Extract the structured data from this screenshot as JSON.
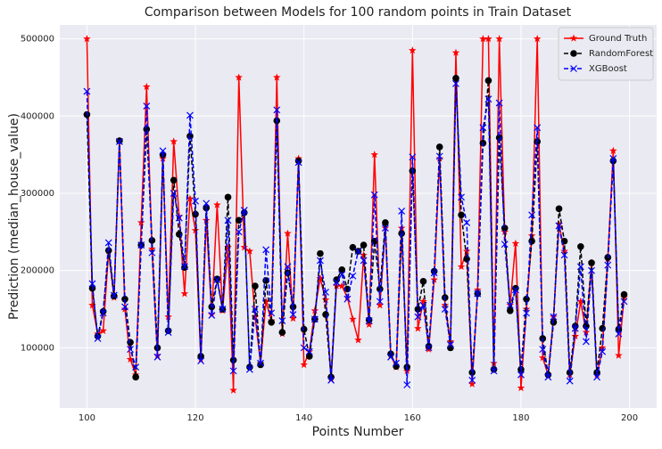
{
  "chart_data": {
    "type": "line",
    "title": "Comparison between Models for 100 random points in Train Dataset",
    "x_label": "Points Number",
    "y_label": "Prediction (median_house_value)",
    "x": [
      100,
      101,
      102,
      103,
      104,
      105,
      106,
      107,
      108,
      109,
      110,
      111,
      112,
      113,
      114,
      115,
      116,
      117,
      118,
      119,
      120,
      121,
      122,
      123,
      124,
      125,
      126,
      127,
      128,
      129,
      130,
      131,
      132,
      133,
      134,
      135,
      136,
      137,
      138,
      139,
      140,
      141,
      142,
      143,
      144,
      145,
      146,
      147,
      148,
      149,
      150,
      151,
      152,
      153,
      154,
      155,
      156,
      157,
      158,
      159,
      160,
      161,
      162,
      163,
      164,
      165,
      166,
      167,
      168,
      169,
      170,
      171,
      172,
      173,
      174,
      175,
      176,
      177,
      178,
      179,
      180,
      181,
      182,
      183,
      184,
      185,
      186,
      187,
      188,
      189,
      190,
      191,
      192,
      193,
      194,
      195,
      196,
      197,
      198,
      199
    ],
    "series": [
      {
        "name": "Ground Truth",
        "color": "#ff0000",
        "marker": "star",
        "linestyle": "solid",
        "values": [
          500000,
          155000,
          118000,
          122000,
          225000,
          165000,
          368000,
          150000,
          85000,
          65000,
          262000,
          438000,
          228000,
          90000,
          345000,
          140000,
          367000,
          270000,
          170000,
          293000,
          252000,
          85000,
          265000,
          143000,
          285000,
          148000,
          230000,
          45000,
          450000,
          230000,
          225000,
          140000,
          80000,
          160000,
          135000,
          450000,
          118000,
          248000,
          138000,
          345000,
          78000,
          95000,
          148000,
          190000,
          162000,
          60000,
          180000,
          180000,
          165000,
          137000,
          110000,
          220000,
          130000,
          350000,
          155000,
          255000,
          90000,
          75000,
          255000,
          70000,
          485000,
          125000,
          160000,
          98000,
          188000,
          345000,
          155000,
          108000,
          482000,
          205000,
          225000,
          53000,
          175000,
          500000,
          500000,
          80000,
          500000,
          250000,
          155000,
          235000,
          48000,
          150000,
          245000,
          500000,
          87000,
          65000,
          140000,
          260000,
          225000,
          65000,
          115000,
          160000,
          120000,
          210000,
          65000,
          100000,
          215000,
          355000,
          90000,
          165000
        ]
      },
      {
        "name": "RandomForest",
        "color": "#000000",
        "marker": "circle",
        "linestyle": "dashed",
        "values": [
          402000,
          177000,
          115000,
          147000,
          226000,
          167000,
          368000,
          163000,
          107000,
          62000,
          233000,
          383000,
          239000,
          100000,
          350000,
          122000,
          317000,
          247000,
          204000,
          374000,
          273000,
          89000,
          281000,
          153000,
          189000,
          150000,
          295000,
          84000,
          265000,
          275000,
          75000,
          180000,
          78000,
          187000,
          133000,
          394000,
          120000,
          197000,
          153000,
          342000,
          124000,
          89000,
          137000,
          222000,
          143000,
          62000,
          188000,
          201000,
          176000,
          230000,
          225000,
          233000,
          136000,
          238000,
          176000,
          262000,
          92000,
          76000,
          248000,
          75000,
          329000,
          150000,
          186000,
          102000,
          199000,
          360000,
          165000,
          100000,
          449000,
          272000,
          215000,
          68000,
          170000,
          365000,
          446000,
          72000,
          372000,
          255000,
          148000,
          177000,
          72000,
          163000,
          238000,
          367000,
          112000,
          65000,
          133000,
          280000,
          238000,
          68000,
          128000,
          231000,
          128000,
          210000,
          68000,
          125000,
          217000,
          342000,
          124000,
          169000
        ]
      },
      {
        "name": "XGBoost",
        "color": "#0000ff",
        "marker": "x",
        "linestyle": "dashed",
        "values": [
          432000,
          183000,
          112000,
          145000,
          236000,
          168000,
          367000,
          153000,
          98000,
          75000,
          233000,
          413000,
          223000,
          88000,
          355000,
          120000,
          300000,
          268000,
          205000,
          401000,
          290000,
          83000,
          287000,
          142000,
          188000,
          150000,
          265000,
          70000,
          250000,
          278000,
          72000,
          150000,
          80000,
          227000,
          145000,
          408000,
          135000,
          205000,
          143000,
          340000,
          100000,
          95000,
          137000,
          213000,
          172000,
          58000,
          185000,
          195000,
          163000,
          193000,
          225000,
          213000,
          135000,
          298000,
          160000,
          255000,
          88000,
          80000,
          277000,
          52000,
          347000,
          140000,
          155000,
          100000,
          197000,
          348000,
          150000,
          104000,
          442000,
          295000,
          262000,
          58000,
          170000,
          385000,
          422000,
          70000,
          417000,
          234000,
          155000,
          175000,
          65000,
          145000,
          272000,
          385000,
          98000,
          62000,
          140000,
          258000,
          220000,
          57000,
          125000,
          205000,
          108000,
          200000,
          62000,
          95000,
          207000,
          345000,
          118000,
          160000
        ]
      }
    ],
    "xlim": [
      95,
      205
    ],
    "xticks": [
      100,
      120,
      140,
      160,
      180,
      200
    ],
    "ylim": [
      22000,
      518000
    ],
    "yticks": [
      100000,
      200000,
      300000,
      400000,
      500000
    ],
    "grid": true,
    "legend": "upper right"
  }
}
